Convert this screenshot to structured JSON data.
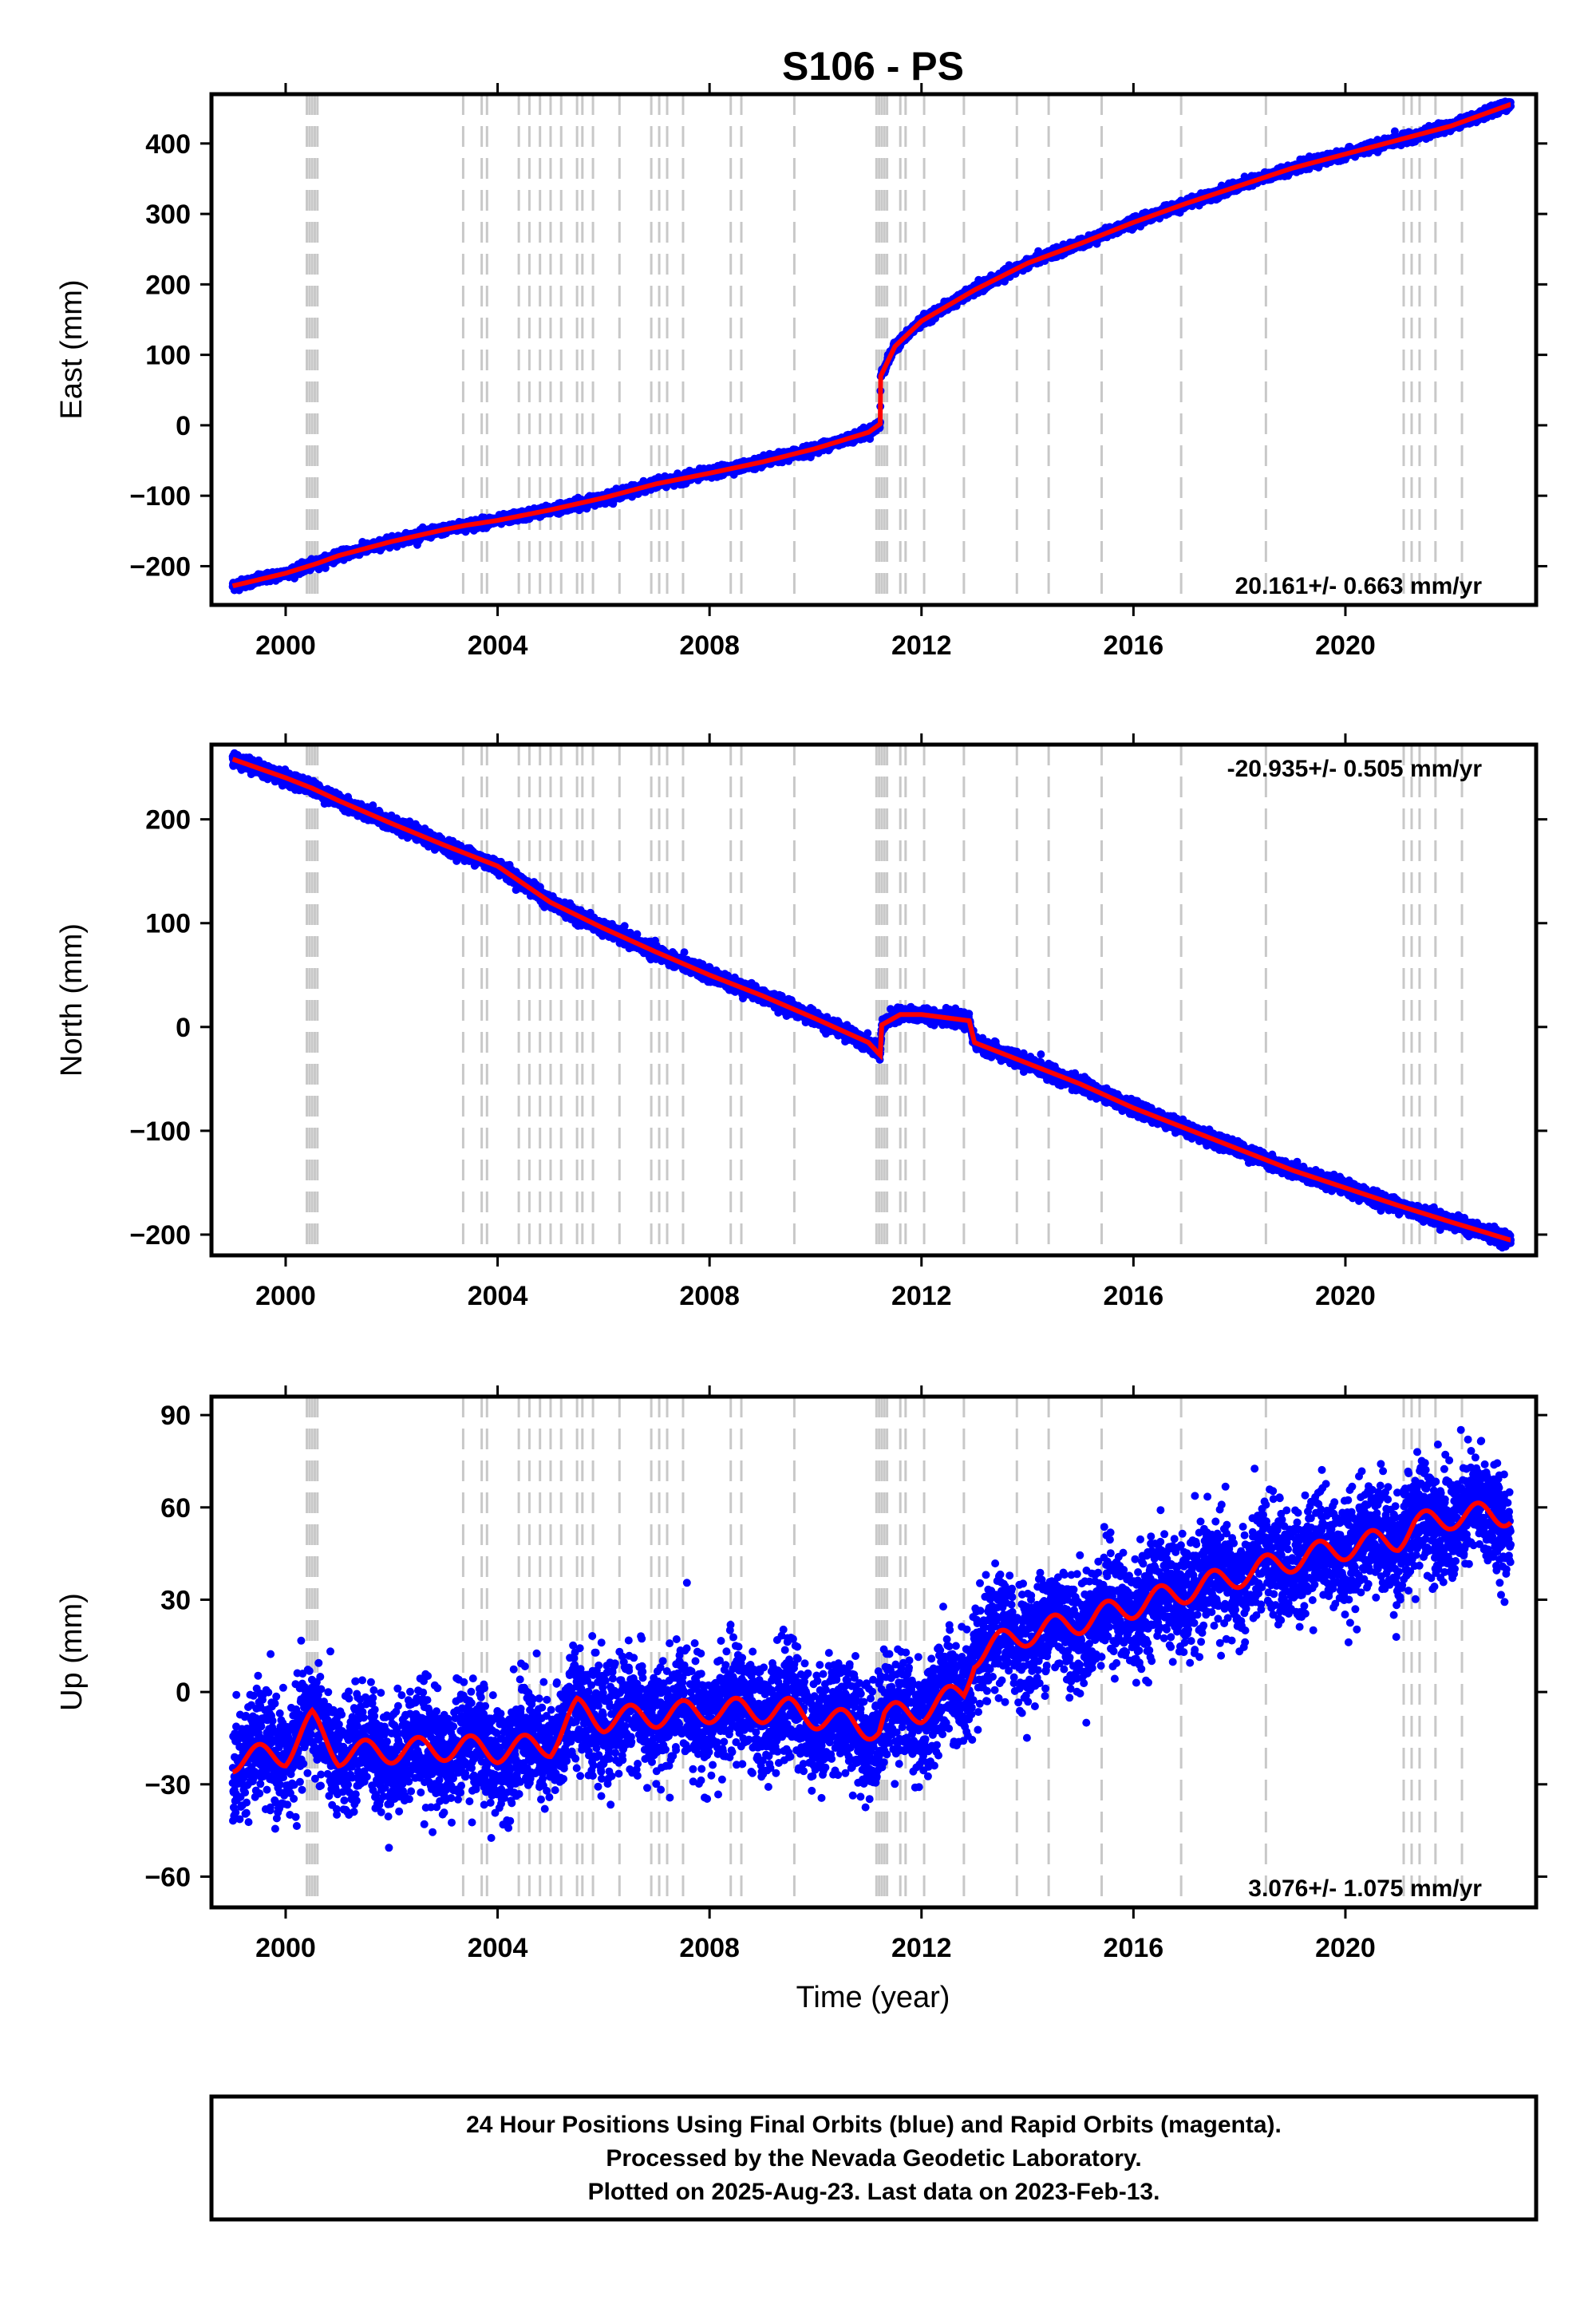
{
  "title": "S106 - PS",
  "xlabel": "Time (year)",
  "x_ticks": [
    2000,
    2004,
    2008,
    2012,
    2016,
    2020
  ],
  "xlim": [
    1998.6,
    2023.6
  ],
  "event_lines": [
    2000.4,
    2000.45,
    2000.5,
    2000.55,
    2000.6,
    2003.35,
    2003.7,
    2003.8,
    2004.4,
    2004.6,
    2004.8,
    2005.0,
    2005.2,
    2005.5,
    2005.6,
    2005.8,
    2006.3,
    2006.9,
    2007.05,
    2007.2,
    2007.5,
    2008.4,
    2008.6,
    2009.6,
    2011.15,
    2011.2,
    2011.25,
    2011.3,
    2011.35,
    2011.6,
    2011.7,
    2012.05,
    2012.8,
    2013.8,
    2014.4,
    2015.4,
    2016.9,
    2018.5,
    2021.1,
    2021.25,
    2021.4,
    2021.7,
    2022.2
  ],
  "chart_data": [
    {
      "type": "scatter",
      "name": "east",
      "ylabel": "East (mm)",
      "ylim": [
        -255,
        470
      ],
      "y_ticks": [
        -200,
        -100,
        0,
        100,
        200,
        300,
        400
      ],
      "rate_text": "20.161+/- 0.663 mm/yr",
      "rate_position": "bottom-right",
      "model_line_color": "#ff0000",
      "point_color": "#0000ff",
      "model_points": [
        [
          1999.0,
          -228
        ],
        [
          2000.0,
          -210
        ],
        [
          2000.6,
          -196
        ],
        [
          2001.0,
          -185
        ],
        [
          2002.0,
          -165
        ],
        [
          2003.0,
          -148
        ],
        [
          2003.4,
          -142
        ],
        [
          2004.0,
          -135
        ],
        [
          2005.0,
          -120
        ],
        [
          2006.0,
          -103
        ],
        [
          2007.0,
          -83
        ],
        [
          2008.0,
          -68
        ],
        [
          2009.0,
          -52
        ],
        [
          2010.0,
          -33
        ],
        [
          2011.0,
          -10
        ],
        [
          2011.22,
          2
        ],
        [
          2011.23,
          70
        ],
        [
          2011.5,
          112
        ],
        [
          2012.0,
          148
        ],
        [
          2012.5,
          170
        ],
        [
          2013.0,
          192
        ],
        [
          2014.0,
          230
        ],
        [
          2015.0,
          258
        ],
        [
          2016.0,
          288
        ],
        [
          2017.0,
          315
        ],
        [
          2018.0,
          340
        ],
        [
          2019.0,
          365
        ],
        [
          2020.0,
          385
        ],
        [
          2021.0,
          405
        ],
        [
          2022.0,
          425
        ],
        [
          2023.1,
          455
        ]
      ]
    },
    {
      "type": "scatter",
      "name": "north",
      "ylabel": "North (mm)",
      "ylim": [
        -220,
        272
      ],
      "y_ticks": [
        -200,
        -100,
        0,
        100,
        200
      ],
      "rate_text": "-20.935+/- 0.505 mm/yr",
      "rate_position": "top-right",
      "model_line_color": "#ff0000",
      "point_color": "#0000ff",
      "model_points": [
        [
          1999.0,
          258
        ],
        [
          2000.0,
          240
        ],
        [
          2000.5,
          230
        ],
        [
          2001.0,
          218
        ],
        [
          2002.0,
          196
        ],
        [
          2003.0,
          175
        ],
        [
          2004.0,
          155
        ],
        [
          2005.0,
          120
        ],
        [
          2006.0,
          95
        ],
        [
          2007.0,
          72
        ],
        [
          2008.0,
          50
        ],
        [
          2009.0,
          30
        ],
        [
          2010.0,
          8
        ],
        [
          2011.0,
          -15
        ],
        [
          2011.22,
          -27
        ],
        [
          2011.25,
          2
        ],
        [
          2011.6,
          12
        ],
        [
          2012.0,
          12
        ],
        [
          2012.9,
          6
        ],
        [
          2013.0,
          -15
        ],
        [
          2014.0,
          -35
        ],
        [
          2015.0,
          -55
        ],
        [
          2016.0,
          -78
        ],
        [
          2017.0,
          -98
        ],
        [
          2018.0,
          -118
        ],
        [
          2019.0,
          -138
        ],
        [
          2020.0,
          -155
        ],
        [
          2021.0,
          -172
        ],
        [
          2022.0,
          -188
        ],
        [
          2023.1,
          -205
        ]
      ]
    },
    {
      "type": "scatter",
      "name": "up",
      "ylabel": "Up (mm)",
      "ylim": [
        -70,
        96
      ],
      "y_ticks": [
        -60,
        -30,
        0,
        30,
        60,
        90
      ],
      "rate_text": "3.076+/- 1.075 mm/yr",
      "rate_position": "bottom-right",
      "model_line_color": "#ff0000",
      "point_color": "#0000ff",
      "scatter_spread_mm": 9,
      "seasonal_amplitude_mm": 4,
      "model_points": [
        [
          1999.0,
          -22
        ],
        [
          2000.0,
          -20
        ],
        [
          2000.5,
          -10
        ],
        [
          2001.0,
          -20
        ],
        [
          2003.35,
          -18
        ],
        [
          2004.0,
          -19
        ],
        [
          2005.0,
          -17
        ],
        [
          2005.5,
          -6
        ],
        [
          2006.0,
          -9
        ],
        [
          2008.0,
          -6
        ],
        [
          2009.5,
          -6
        ],
        [
          2010.0,
          -8
        ],
        [
          2011.2,
          -12
        ],
        [
          2011.3,
          -8
        ],
        [
          2012.0,
          -6
        ],
        [
          2012.8,
          0
        ],
        [
          2013.0,
          12
        ],
        [
          2013.5,
          16
        ],
        [
          2014.0,
          19
        ],
        [
          2015.0,
          23
        ],
        [
          2016.0,
          28
        ],
        [
          2017.0,
          33
        ],
        [
          2018.0,
          38
        ],
        [
          2019.0,
          43
        ],
        [
          2020.0,
          47
        ],
        [
          2021.0,
          50
        ],
        [
          2021.3,
          54
        ],
        [
          2022.0,
          57
        ],
        [
          2023.1,
          58
        ]
      ]
    }
  ],
  "footer": {
    "line1": "24 Hour Positions Using Final Orbits (blue) and Rapid Orbits (magenta).",
    "line2": "Processed by the Nevada Geodetic Laboratory.",
    "line3": "Plotted on 2025-Aug-23. Last data on 2023-Feb-13."
  }
}
